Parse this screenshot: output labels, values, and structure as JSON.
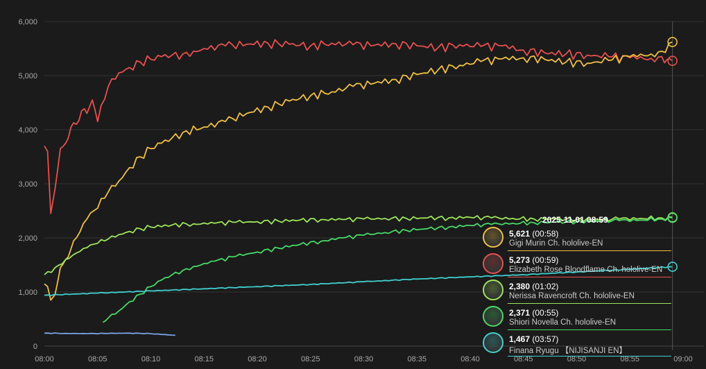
{
  "chart_data": {
    "type": "line",
    "title": "",
    "xlabel": "",
    "ylabel": "",
    "ylim": [
      0,
      6000
    ],
    "yticks": [
      "0",
      "1,000",
      "2,000",
      "3,000",
      "4,000",
      "5,000",
      "6,000"
    ],
    "xticks": [
      "08:00",
      "08:05",
      "08:10",
      "08:15",
      "08:20",
      "08:25",
      "08:30",
      "08:35",
      "08:40",
      "08:45",
      "08:50",
      "08:55",
      "09:00"
    ],
    "grid": true,
    "series": [
      {
        "name": "Elizabeth Rose Bloodflame Ch. hololive-EN",
        "color": "#e8504f",
        "x": [
          0,
          0.3,
          0.6,
          1,
          1.5,
          2,
          2.5,
          3,
          3.5,
          4,
          4.5,
          5,
          6,
          7,
          8,
          9,
          10,
          11,
          12,
          13,
          14,
          15,
          17,
          19,
          21,
          23,
          25,
          27,
          29,
          31,
          33,
          35,
          37,
          39,
          41,
          43,
          45,
          47,
          49,
          51,
          53,
          55,
          57,
          58,
          58.5,
          59
        ],
        "values": [
          3700,
          3600,
          2450,
          2900,
          3650,
          3750,
          4050,
          4100,
          4350,
          4300,
          4550,
          4150,
          4800,
          5050,
          5150,
          5250,
          5300,
          5350,
          5380,
          5400,
          5450,
          5500,
          5550,
          5580,
          5600,
          5580,
          5550,
          5600,
          5570,
          5560,
          5590,
          5550,
          5520,
          5570,
          5540,
          5550,
          5470,
          5420,
          5400,
          5380,
          5350,
          5330,
          5320,
          5350,
          5300,
          5273
        ]
      },
      {
        "name": "Gigi Murin Ch. hololive-EN",
        "color": "#f0c040",
        "x": [
          0,
          0.3,
          0.6,
          1,
          1.5,
          2,
          2.5,
          3,
          4,
          5,
          6,
          7,
          8,
          9,
          10,
          11,
          12,
          13,
          15,
          17,
          19,
          21,
          23,
          25,
          27,
          29,
          31,
          33,
          35,
          37,
          39,
          41,
          43,
          45,
          47,
          49,
          51,
          53,
          55,
          57,
          58,
          59
        ],
        "values": [
          1150,
          1100,
          850,
          950,
          1450,
          1600,
          1800,
          2000,
          2350,
          2550,
          2850,
          3050,
          3300,
          3500,
          3650,
          3750,
          3850,
          3950,
          4050,
          4150,
          4300,
          4420,
          4530,
          4630,
          4700,
          4800,
          4860,
          4930,
          5020,
          5110,
          5190,
          5260,
          5310,
          5330,
          5300,
          5250,
          5230,
          5280,
          5350,
          5400,
          5450,
          5621
        ]
      },
      {
        "name": "Nerissa Ravencroft Ch. hololive-EN",
        "color": "#9ee65a",
        "x": [
          0,
          1,
          2,
          3,
          4,
          5,
          6,
          7,
          8,
          9,
          10,
          12,
          14,
          16,
          18,
          20,
          22,
          24,
          26,
          28,
          30,
          32,
          34,
          36,
          38,
          40,
          42,
          44,
          46,
          48,
          50,
          52,
          54,
          56,
          58,
          59
        ],
        "values": [
          1320,
          1450,
          1600,
          1720,
          1820,
          1900,
          1980,
          2060,
          2120,
          2170,
          2200,
          2240,
          2260,
          2270,
          2290,
          2300,
          2310,
          2330,
          2340,
          2340,
          2350,
          2360,
          2360,
          2370,
          2370,
          2380,
          2370,
          2360,
          2350,
          2350,
          2340,
          2340,
          2350,
          2360,
          2370,
          2380
        ]
      },
      {
        "name": "Shiori Novella Ch. hololive-EN",
        "color": "#47d966",
        "x": [
          5.5,
          6,
          7,
          8,
          9,
          10,
          11,
          12,
          13,
          14,
          16,
          18,
          20,
          22,
          24,
          26,
          28,
          30,
          32,
          34,
          36,
          38,
          40,
          42,
          44,
          46,
          48,
          50,
          52,
          54,
          56,
          58,
          59
        ],
        "values": [
          440,
          520,
          650,
          820,
          960,
          1100,
          1220,
          1320,
          1400,
          1470,
          1570,
          1660,
          1740,
          1810,
          1880,
          1940,
          2000,
          2050,
          2100,
          2140,
          2170,
          2200,
          2230,
          2250,
          2270,
          2280,
          2290,
          2300,
          2310,
          2320,
          2330,
          2350,
          2371
        ]
      },
      {
        "name": "Finana Ryugu 【NIJISANJI EN】",
        "color": "#40d0d0",
        "x": [
          0,
          5,
          10,
          15,
          20,
          25,
          30,
          35,
          40,
          45,
          50,
          55,
          59
        ],
        "values": [
          940,
          980,
          1020,
          1060,
          1100,
          1140,
          1190,
          1240,
          1280,
          1320,
          1370,
          1420,
          1467
        ]
      },
      {
        "name": "",
        "color": "#7aa2e6",
        "x": [
          0,
          2,
          4,
          6,
          8,
          10,
          12.3
        ],
        "values": [
          240,
          235,
          230,
          235,
          240,
          230,
          200
        ]
      }
    ],
    "tooltip": {
      "date": "2025-11-01 08:59",
      "rows": [
        {
          "value": "5,621",
          "duration": "(00:58)",
          "name": "Gigi Murin Ch. hololive-EN",
          "color": "#f0c040"
        },
        {
          "value": "5,273",
          "duration": "(00:59)",
          "name": "Elizabeth Rose Bloodflame Ch. hololive-EN",
          "color": "#e8504f"
        },
        {
          "value": "2,380",
          "duration": "(01:02)",
          "name": "Nerissa Ravencroft Ch. hololive-EN",
          "color": "#9ee65a"
        },
        {
          "value": "2,371",
          "duration": "(00:55)",
          "name": "Shiori Novella Ch. hololive-EN",
          "color": "#47d966"
        },
        {
          "value": "1,467",
          "duration": "(03:57)",
          "name": "Finana Ryugu 【NIJISANJI EN】",
          "color": "#40d0d0"
        }
      ]
    }
  }
}
